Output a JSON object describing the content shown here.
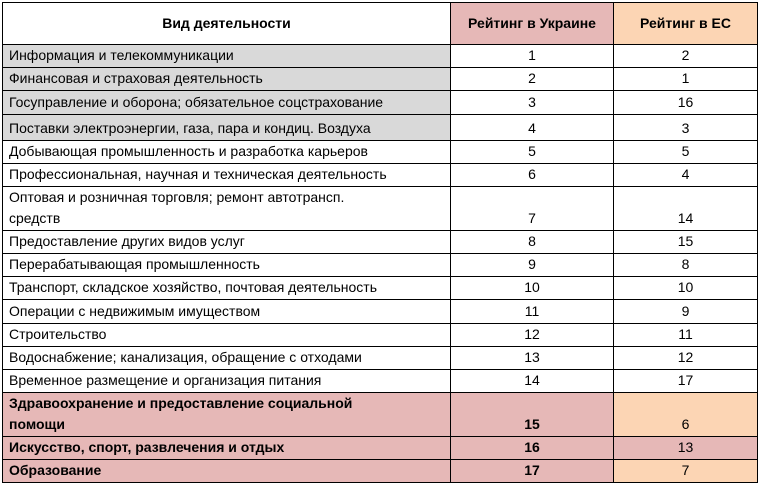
{
  "table": {
    "header": [
      "Вид деятельности",
      "Рейтинг в Украине",
      "Рейтинг в ЕС"
    ],
    "rows": [
      [
        "Информация и телекоммуникации",
        1,
        2
      ],
      [
        "Финансовая и страховая деятельность",
        2,
        1
      ],
      [
        "Госуправление и оборона; обязательное соцстрахование",
        3,
        16
      ],
      [
        "Поставки электроэнергии, газа, пара и кондиц. Воздуха",
        4,
        3
      ],
      [
        "Добывающая промышленность и разработка карьеров",
        5,
        5
      ],
      [
        "Профессиональная, научная и техническая деятельность",
        6,
        4
      ],
      [
        "Оптовая и розничная торговля; ремонт автотрансп. средств",
        7,
        14
      ],
      [
        "Предоставление других видов услуг",
        8,
        15
      ],
      [
        "Перерабатывающая промышленность",
        9,
        8
      ],
      [
        "Транспорт, складское хозяйство, почтовая деятельность",
        10,
        10
      ],
      [
        "Операции с недвижимым имуществом",
        11,
        9
      ],
      [
        "Строительство",
        12,
        11
      ],
      [
        "Водоснабжение; канализация, обращение с отходами",
        13,
        12
      ],
      [
        "Временное размещение и организация питания",
        14,
        17
      ],
      [
        "Здравоохранение и предоставление социальной помощи",
        15,
        6
      ],
      [
        "Искусство, спорт, развлечения и отдых",
        16,
        13
      ],
      [
        "Образование",
        17,
        7
      ]
    ]
  }
}
